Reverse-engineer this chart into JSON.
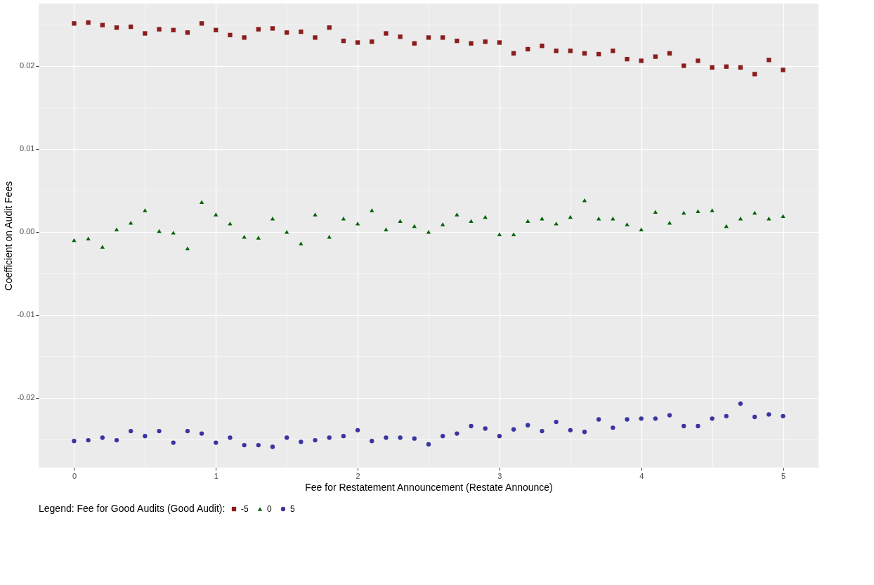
{
  "chart_data": {
    "type": "scatter",
    "xlabel": "Fee for Restatement Announcement (Restate Announce)",
    "ylabel": "Coefficient on Audit Fees",
    "legend_title": "Legend: Fee for Good Audits (Good Audit):",
    "legend": "bottom",
    "grid": true,
    "xlim": [
      -0.25,
      5.25
    ],
    "xticks": [
      0,
      {
        "value": 0.5,
        "label": null
      },
      1,
      {
        "value": 1.5,
        "label": null
      },
      2,
      {
        "value": 2.5,
        "label": null
      },
      3,
      {
        "value": 3.5,
        "label": null
      },
      4,
      {
        "value": 4.5,
        "label": null
      },
      5
    ],
    "ylim": [
      -0.0284,
      0.0275
    ],
    "yticks": [
      {
        "value": -0.025,
        "label": null
      },
      -0.02,
      {
        "value": -0.015,
        "label": null
      },
      -0.01,
      {
        "value": -0.005,
        "label": null
      },
      {
        "value": 0,
        "label": "0.00"
      },
      {
        "value": 0.005,
        "label": null
      },
      0.01,
      {
        "value": 0.015,
        "label": null
      },
      0.02,
      {
        "value": 0.025,
        "label": null
      }
    ],
    "x": [
      0,
      0.1,
      0.2,
      0.3,
      0.4,
      0.5,
      0.6,
      0.7,
      0.8,
      0.9,
      1,
      1.1,
      1.2,
      1.3,
      1.4,
      1.5,
      1.6,
      1.7,
      1.8,
      1.9,
      2,
      2.1,
      2.2,
      2.3,
      2.4,
      2.5,
      2.6,
      2.7,
      2.8,
      2.9,
      3,
      3.1,
      3.2,
      3.3,
      3.4,
      3.5,
      3.6,
      3.7,
      3.8,
      3.9,
      4,
      4.1,
      4.2,
      4.3,
      4.4,
      4.5,
      4.6,
      4.7,
      4.8,
      4.9,
      5
    ],
    "series": [
      {
        "name": "-5",
        "color": "#8b1c1c",
        "marker": "square",
        "values": [
          0.0251,
          0.0252,
          0.0249,
          0.0246,
          0.0247,
          0.0239,
          0.0244,
          0.0243,
          0.024,
          0.0251,
          0.0243,
          0.0237,
          0.0234,
          0.0244,
          0.0245,
          0.024,
          0.0241,
          0.0234,
          0.0246,
          0.023,
          0.0228,
          0.0229,
          0.0239,
          0.0235,
          0.0227,
          0.0234,
          0.0234,
          0.023,
          0.0227,
          0.0229,
          0.0228,
          0.0215,
          0.022,
          0.0224,
          0.0218,
          0.0218,
          0.0215,
          0.0214,
          0.0218,
          0.0208,
          0.0206,
          0.0211,
          0.0215,
          0.02,
          0.0206,
          0.0198,
          0.0199,
          0.0198,
          0.019,
          0.0207,
          0.0195
        ]
      },
      {
        "name": "0",
        "color": "#006400",
        "marker": "triangle",
        "values": [
          -0.001,
          -0.0008,
          -0.0018,
          0.0003,
          0.0011,
          0.0026,
          0.0001,
          -0.0001,
          -0.002,
          0.0036,
          0.0021,
          0.001,
          -0.0006,
          -0.0007,
          0.0016,
          0.0,
          -0.0014,
          0.0021,
          -0.0006,
          0.0016,
          0.001,
          0.0026,
          0.0003,
          0.0013,
          0.0007,
          0.0,
          0.0009,
          0.0021,
          0.0013,
          0.0018,
          -0.0003,
          -0.0003,
          0.0013,
          0.0016,
          0.001,
          0.0018,
          0.0038,
          0.0016,
          0.0016,
          0.0009,
          0.0003,
          0.0024,
          0.0011,
          0.0023,
          0.0025,
          0.0026,
          0.0007,
          0.0016,
          0.0023,
          0.0016,
          0.0019
        ]
      },
      {
        "name": "5",
        "color": "#3a34a0",
        "marker": "circle",
        "values": [
          -0.0252,
          -0.0251,
          -0.0248,
          -0.0251,
          -0.024,
          -0.0246,
          -0.024,
          -0.0254,
          -0.024,
          -0.0243,
          -0.0254,
          -0.0248,
          -0.0257,
          -0.0257,
          -0.0259,
          -0.0248,
          -0.0253,
          -0.0251,
          -0.0248,
          -0.0246,
          -0.0239,
          -0.0252,
          -0.0248,
          -0.0248,
          -0.0249,
          -0.0256,
          -0.0246,
          -0.0243,
          -0.0234,
          -0.0237,
          -0.0246,
          -0.0238,
          -0.0233,
          -0.024,
          -0.0229,
          -0.0239,
          -0.0241,
          -0.0226,
          -0.0236,
          -0.0226,
          -0.0225,
          -0.0225,
          -0.0221,
          -0.0234,
          -0.0234,
          -0.0225,
          -0.0222,
          -0.0207,
          -0.0223,
          -0.022,
          -0.0222
        ]
      }
    ]
  }
}
